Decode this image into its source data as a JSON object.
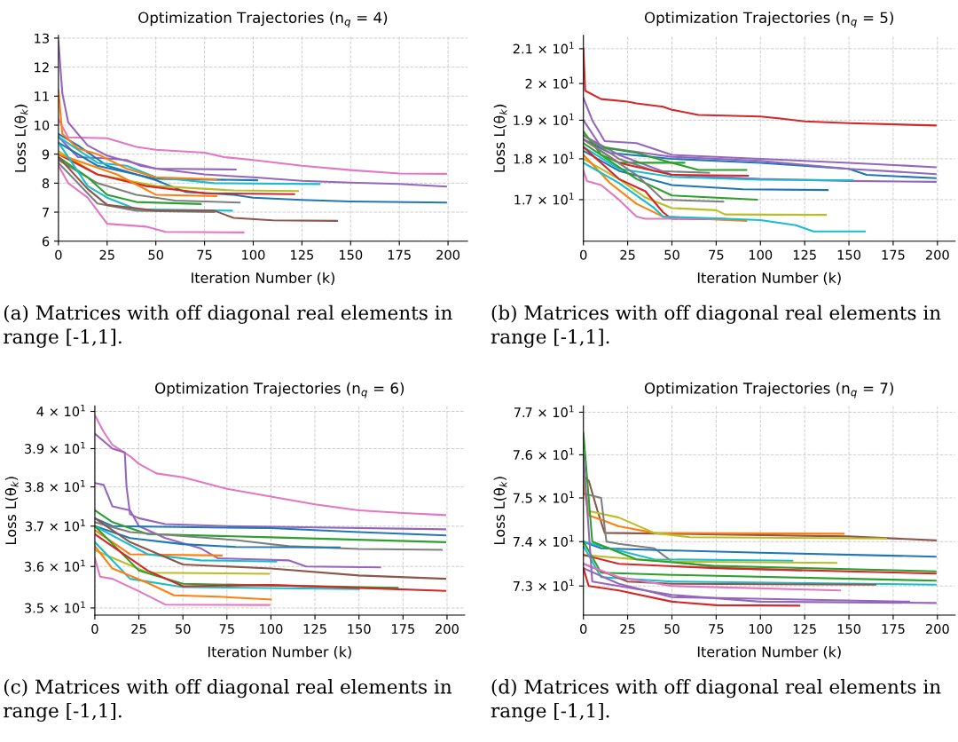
{
  "chart_data": [
    {
      "type": "line",
      "title": "Optimization Trajectories (n$_{q}$ = 4)",
      "xlabel": "Iteration Number (k)",
      "ylabel": "Loss L(θ$_{k}$)",
      "xlim": [
        0,
        210
      ],
      "ylim": [
        6,
        13.1
      ],
      "xticks": [
        0,
        25,
        50,
        75,
        100,
        125,
        150,
        175,
        200
      ],
      "yticks": [
        6,
        7,
        8,
        9,
        10,
        11,
        12,
        13
      ],
      "grid": true,
      "annotations": [
        "(a) Matrices with off diagonal real elements in range [-1,1]."
      ],
      "series": [
        {
          "color": "#e377c2",
          "x": [
            0,
            5,
            25,
            30,
            40,
            50,
            75,
            85,
            100,
            125,
            150,
            175,
            199
          ],
          "values": [
            10.2,
            9.58,
            9.55,
            9.45,
            9.25,
            9.15,
            9.05,
            8.9,
            8.8,
            8.6,
            8.45,
            8.33,
            8.32
          ]
        },
        {
          "color": "#9467bd",
          "x": [
            0,
            2,
            5,
            10,
            15,
            25,
            30,
            50,
            75,
            100,
            125,
            150,
            175,
            199
          ],
          "values": [
            12.9,
            11.1,
            10.1,
            9.7,
            9.3,
            8.95,
            8.85,
            8.5,
            8.3,
            8.2,
            8.08,
            8.02,
            7.97,
            7.88
          ]
        },
        {
          "color": "#9467bd",
          "x": [
            0,
            10,
            25,
            35,
            42,
            50,
            91
          ],
          "values": [
            9.6,
            8.9,
            8.85,
            8.8,
            8.6,
            8.5,
            8.47
          ]
        },
        {
          "color": "#1f77b4",
          "x": [
            0,
            10,
            25,
            50,
            65,
            90,
            100,
            125,
            150,
            199
          ],
          "values": [
            9.7,
            9.3,
            8.6,
            8.1,
            7.7,
            7.6,
            7.5,
            7.42,
            7.37,
            7.33
          ]
        },
        {
          "color": "#1f77b4",
          "x": [
            0,
            20,
            50,
            102
          ],
          "values": [
            9.4,
            8.6,
            8.15,
            8.1
          ]
        },
        {
          "color": "#17becf",
          "x": [
            0,
            20,
            35,
            50,
            80,
            134
          ],
          "values": [
            9.6,
            8.7,
            8.6,
            8.2,
            8.0,
            7.97
          ]
        },
        {
          "color": "#ff7f0e",
          "x": [
            0,
            2,
            10,
            20,
            35,
            50,
            81
          ],
          "values": [
            11.2,
            9.7,
            9.2,
            9.0,
            8.5,
            8.2,
            8.13
          ]
        },
        {
          "color": "#bcbd22",
          "x": [
            0,
            20,
            50,
            90,
            123
          ],
          "values": [
            9.1,
            8.3,
            7.9,
            7.75,
            7.73
          ]
        },
        {
          "color": "#d62728",
          "x": [
            0,
            20,
            45,
            75,
            121
          ],
          "values": [
            9.0,
            8.3,
            7.9,
            7.65,
            7.62
          ]
        },
        {
          "color": "#ff7f0e",
          "x": [
            0,
            30,
            50,
            81
          ],
          "values": [
            9.0,
            8.3,
            7.6,
            7.55
          ]
        },
        {
          "color": "#7f7f7f",
          "x": [
            0,
            20,
            40,
            60,
            93
          ],
          "values": [
            8.8,
            8.0,
            7.6,
            7.4,
            7.33
          ]
        },
        {
          "color": "#2ca02c",
          "x": [
            0,
            15,
            25,
            40,
            73
          ],
          "values": [
            8.9,
            8.2,
            7.6,
            7.35,
            7.28
          ]
        },
        {
          "color": "#17becf",
          "x": [
            0,
            15,
            25,
            40,
            89
          ],
          "values": [
            9.4,
            7.9,
            7.5,
            7.1,
            7.05
          ]
        },
        {
          "color": "#7f7f7f",
          "x": [
            0,
            20,
            40,
            80
          ],
          "values": [
            8.7,
            7.3,
            7.05,
            7.0
          ]
        },
        {
          "color": "#8c564b",
          "x": [
            0,
            15,
            25,
            50,
            80,
            90,
            110,
            143
          ],
          "values": [
            8.9,
            7.8,
            7.25,
            7.05,
            7.05,
            6.8,
            6.72,
            6.7
          ]
        },
        {
          "color": "#e377c2",
          "x": [
            0,
            5,
            15,
            25,
            45,
            55,
            95
          ],
          "values": [
            8.6,
            8.0,
            7.5,
            6.6,
            6.5,
            6.32,
            6.3
          ]
        }
      ]
    },
    {
      "type": "line",
      "title": "Optimization Trajectories (n$_{q}$ = 5)",
      "xlabel": "Iteration Number (k)",
      "ylabel": "Loss L(θ$_{k}$)",
      "log": "y",
      "xlim": [
        0,
        210
      ],
      "ylim": [
        16.04,
        21.4
      ],
      "xticks": [
        0,
        25,
        50,
        75,
        100,
        125,
        150,
        175,
        200
      ],
      "yticks": [
        {
          "value": 17,
          "label": "1.7 × 10$^{1}$"
        },
        {
          "value": 18,
          "label": "1.8 × 10$^{1}$"
        },
        {
          "value": 19,
          "label": "1.9 × 10$^{1}$"
        },
        {
          "value": 20,
          "label": "2 × 10$^{1}$"
        },
        {
          "value": 21,
          "label": "2.1 × 10$^{1}$"
        }
      ],
      "grid": true,
      "annotations": [
        "(b) Matrices with off diagonal real elements in range [-1,1]."
      ],
      "series": [
        {
          "color": "#d62728",
          "x": [
            0,
            1,
            10,
            25,
            30,
            45,
            50,
            65,
            100,
            110,
            125,
            150,
            199
          ],
          "values": [
            21.0,
            19.8,
            19.57,
            19.5,
            19.45,
            19.36,
            19.28,
            19.14,
            19.1,
            19.05,
            18.97,
            18.92,
            18.86
          ]
        },
        {
          "color": "#9467bd",
          "x": [
            0,
            5,
            12,
            30,
            50,
            100,
            150,
            199
          ],
          "values": [
            19.6,
            19.0,
            18.45,
            18.4,
            18.1,
            18.0,
            17.9,
            17.79
          ]
        },
        {
          "color": "#1f77b4",
          "x": [
            0,
            15,
            50,
            100,
            150,
            160,
            199
          ],
          "values": [
            18.5,
            18.15,
            18.0,
            17.9,
            17.75,
            17.6,
            17.52
          ]
        },
        {
          "color": "#9467bd",
          "x": [
            0,
            10,
            50,
            100,
            150,
            199
          ],
          "values": [
            19.0,
            18.3,
            18.05,
            17.95,
            17.75,
            17.62
          ]
        },
        {
          "color": "#9467bd",
          "x": [
            0,
            20,
            50,
            100,
            150,
            199
          ],
          "values": [
            18.6,
            18.1,
            17.6,
            17.5,
            17.45,
            17.43
          ]
        },
        {
          "color": "#2ca02c",
          "x": [
            0,
            10,
            20,
            57
          ],
          "values": [
            18.7,
            18.1,
            17.9,
            17.9
          ]
        },
        {
          "color": "#2ca02c",
          "x": [
            0,
            10,
            30,
            50,
            65,
            92
          ],
          "values": [
            18.6,
            18.3,
            18.15,
            17.9,
            17.72,
            17.72
          ]
        },
        {
          "color": "#7f7f7f",
          "x": [
            0,
            20,
            40,
            71
          ],
          "values": [
            18.6,
            18.0,
            17.7,
            17.65
          ]
        },
        {
          "color": "#d62728",
          "x": [
            0,
            20,
            50,
            93
          ],
          "values": [
            18.5,
            17.9,
            17.6,
            17.58
          ]
        },
        {
          "color": "#17becf",
          "x": [
            0,
            20,
            50,
            100,
            152
          ],
          "values": [
            18.3,
            17.75,
            17.55,
            17.48,
            17.47
          ]
        },
        {
          "color": "#1f77b4",
          "x": [
            0,
            20,
            50,
            90,
            138
          ],
          "values": [
            18.2,
            17.7,
            17.35,
            17.25,
            17.23
          ]
        },
        {
          "color": "#2ca02c",
          "x": [
            0,
            30,
            50,
            98
          ],
          "values": [
            18.4,
            17.5,
            17.1,
            17.0
          ]
        },
        {
          "color": "#7f7f7f",
          "x": [
            0,
            30,
            45,
            79
          ],
          "values": [
            18.5,
            17.6,
            17.0,
            16.95
          ]
        },
        {
          "color": "#bcbd22",
          "x": [
            0,
            20,
            35,
            50,
            75,
            80,
            137
          ],
          "values": [
            18.0,
            17.5,
            17.05,
            16.8,
            16.75,
            16.65,
            16.64
          ]
        },
        {
          "color": "#d62728",
          "x": [
            0,
            20,
            35,
            45,
            50,
            86
          ],
          "values": [
            18.3,
            17.5,
            17.2,
            16.7,
            16.55,
            16.53
          ]
        },
        {
          "color": "#ff7f0e",
          "x": [
            0,
            15,
            30,
            45,
            92
          ],
          "values": [
            18.1,
            17.4,
            16.9,
            16.6,
            16.5
          ]
        },
        {
          "color": "#e377c2",
          "x": [
            0,
            2,
            10,
            20,
            30,
            35,
            80
          ],
          "values": [
            17.7,
            17.45,
            17.35,
            17.0,
            16.6,
            16.55,
            16.55
          ]
        },
        {
          "color": "#17becf",
          "x": [
            0,
            20,
            40,
            45,
            75,
            100,
            120,
            130,
            159
          ],
          "values": [
            17.9,
            17.4,
            16.8,
            16.6,
            16.56,
            16.52,
            16.4,
            16.26,
            16.26
          ]
        }
      ]
    },
    {
      "type": "line",
      "title": "Optimization Trajectories (n$_{q}$ = 6)",
      "xlabel": "Iteration Number (k)",
      "ylabel": "Loss L(θ$_{k}$)",
      "log": "y",
      "xlim": [
        0,
        210
      ],
      "ylim": [
        34.83,
        40.15
      ],
      "xticks": [
        0,
        25,
        50,
        75,
        100,
        125,
        150,
        175,
        200
      ],
      "yticks": [
        {
          "value": 35,
          "label": "3.5 × 10$^{1}$"
        },
        {
          "value": 36,
          "label": "3.6 × 10$^{1}$"
        },
        {
          "value": 37,
          "label": "3.7 × 10$^{1}$"
        },
        {
          "value": 38,
          "label": "3.8 × 10$^{1}$"
        },
        {
          "value": 39,
          "label": "3.9 × 10$^{1}$"
        },
        {
          "value": 40,
          "label": "4 × 10$^{1}$"
        }
      ],
      "grid": true,
      "annotations": [
        "(c) Matrices with off diagonal real elements in range [-1,1]."
      ],
      "series": [
        {
          "color": "#e377c2",
          "x": [
            0,
            5,
            10,
            20,
            25,
            35,
            50,
            75,
            100,
            125,
            150,
            175,
            199
          ],
          "values": [
            39.9,
            39.45,
            39.1,
            38.8,
            38.6,
            38.35,
            38.25,
            37.95,
            37.75,
            37.55,
            37.4,
            37.33,
            37.28
          ]
        },
        {
          "color": "#9467bd",
          "x": [
            0,
            10,
            17,
            18,
            20,
            25,
            40,
            75,
            199
          ],
          "values": [
            39.4,
            39.0,
            38.9,
            38.0,
            37.3,
            37.2,
            37.05,
            37.0,
            36.92
          ]
        },
        {
          "color": "#9467bd",
          "x": [
            0,
            5,
            10,
            20,
            25,
            40,
            60,
            70,
            110,
            120,
            162
          ],
          "values": [
            38.1,
            38.05,
            37.5,
            37.4,
            37.0,
            36.7,
            36.45,
            36.2,
            36.15,
            36.0,
            35.98
          ]
        },
        {
          "color": "#1f77b4",
          "x": [
            0,
            10,
            100,
            150,
            199
          ],
          "values": [
            37.2,
            37.0,
            36.95,
            36.85,
            36.77
          ]
        },
        {
          "color": "#2ca02c",
          "x": [
            0,
            10,
            30,
            100,
            199
          ],
          "values": [
            37.4,
            37.1,
            36.8,
            36.72,
            36.6
          ]
        },
        {
          "color": "#7f7f7f",
          "x": [
            0,
            20,
            80,
            110,
            150,
            197
          ],
          "values": [
            37.1,
            36.85,
            36.65,
            36.5,
            36.43,
            36.41
          ]
        },
        {
          "color": "#1f77b4",
          "x": [
            0,
            20,
            50,
            80,
            139
          ],
          "values": [
            37.0,
            36.7,
            36.55,
            36.48,
            36.47
          ]
        },
        {
          "color": "#ff7f0e",
          "x": [
            0,
            20,
            72
          ],
          "values": [
            36.9,
            36.3,
            36.27
          ]
        },
        {
          "color": "#17becf",
          "x": [
            0,
            30,
            60,
            103
          ],
          "values": [
            37.0,
            36.3,
            36.15,
            36.12
          ]
        },
        {
          "color": "#bcbd22",
          "x": [
            0,
            30,
            99
          ],
          "values": [
            36.4,
            35.85,
            35.82
          ]
        },
        {
          "color": "#8c564b",
          "x": [
            0,
            20,
            50,
            100,
            150,
            199
          ],
          "values": [
            37.2,
            36.6,
            36.05,
            35.95,
            35.78,
            35.7
          ]
        },
        {
          "color": "#2ca02c",
          "x": [
            0,
            25,
            50,
            172
          ],
          "values": [
            37.0,
            35.9,
            35.58,
            35.48
          ]
        },
        {
          "color": "#17becf",
          "x": [
            0,
            20,
            50,
            150
          ],
          "values": [
            36.6,
            35.7,
            35.5,
            35.45
          ]
        },
        {
          "color": "#d62728",
          "x": [
            0,
            30,
            50,
            100,
            150,
            199
          ],
          "values": [
            36.8,
            35.9,
            35.52,
            35.55,
            35.48,
            35.41
          ]
        },
        {
          "color": "#ff7f0e",
          "x": [
            0,
            10,
            30,
            45,
            70,
            100
          ],
          "values": [
            36.5,
            35.95,
            35.6,
            35.3,
            35.27,
            35.2
          ]
        },
        {
          "color": "#e377c2",
          "x": [
            0,
            3,
            10,
            25,
            40,
            99
          ],
          "values": [
            36.2,
            35.75,
            35.7,
            35.4,
            35.08,
            35.07
          ]
        }
      ]
    },
    {
      "type": "line",
      "title": "Optimization Trajectories (n$_{q}$ = 7)",
      "xlabel": "Iteration Number (k)",
      "ylabel": "Loss L(θ$_{k}$)",
      "log": "y",
      "xlim": [
        0,
        210
      ],
      "ylim": [
        72.35,
        77.15
      ],
      "xticks": [
        0,
        25,
        50,
        75,
        100,
        125,
        150,
        175,
        200
      ],
      "yticks": [
        {
          "value": 73,
          "label": "7.3 × 10$^{1}$"
        },
        {
          "value": 74,
          "label": "7.4 × 10$^{1}$"
        },
        {
          "value": 75,
          "label": "7.5 × 10$^{1}$"
        },
        {
          "value": 76,
          "label": "7.6 × 10$^{1}$"
        },
        {
          "value": 77,
          "label": "7.7 × 10$^{1}$"
        }
      ],
      "grid": true,
      "annotations": [
        "(d) Matrices with off diagonal real elements in range [-1,1]."
      ],
      "series": [
        {
          "color": "#8c564b",
          "x": [
            0,
            3,
            8,
            12,
            50,
            150,
            199
          ],
          "values": [
            75.5,
            75.4,
            74.7,
            74.2,
            74.18,
            74.12,
            74.03
          ]
        },
        {
          "color": "#ff7f0e",
          "x": [
            0,
            3,
            10,
            20,
            40,
            147
          ],
          "values": [
            75.3,
            74.6,
            74.5,
            74.35,
            74.2,
            74.18
          ]
        },
        {
          "color": "#bcbd22",
          "x": [
            0,
            3,
            20,
            40,
            60,
            171
          ],
          "values": [
            75.5,
            74.7,
            74.55,
            74.2,
            74.1,
            74.07
          ]
        },
        {
          "color": "#7f7f7f",
          "x": [
            0,
            10,
            13,
            20,
            40,
            50,
            80,
            123
          ],
          "values": [
            75.1,
            75.0,
            74.0,
            73.95,
            73.85,
            73.55,
            73.4,
            73.35
          ]
        },
        {
          "color": "#1f77b4",
          "x": [
            0,
            10,
            50,
            100,
            199
          ],
          "values": [
            74.0,
            73.85,
            73.8,
            73.75,
            73.66
          ]
        },
        {
          "color": "#17becf",
          "x": [
            0,
            10,
            40,
            118
          ],
          "values": [
            74.0,
            73.9,
            73.6,
            73.57
          ]
        },
        {
          "color": "#bcbd22",
          "x": [
            0,
            30,
            50,
            143
          ],
          "values": [
            73.7,
            73.6,
            73.55,
            73.52
          ]
        },
        {
          "color": "#2ca02c",
          "x": [
            0,
            5,
            30,
            75,
            199
          ],
          "values": [
            76.5,
            74.0,
            73.6,
            73.45,
            73.33
          ]
        },
        {
          "color": "#d62728",
          "x": [
            0,
            20,
            75,
            199
          ],
          "values": [
            73.7,
            73.5,
            73.4,
            73.28
          ]
        },
        {
          "color": "#2ca02c",
          "x": [
            0,
            10,
            50,
            199
          ],
          "values": [
            74.0,
            73.3,
            73.25,
            73.12
          ]
        },
        {
          "color": "#17becf",
          "x": [
            0,
            10,
            50,
            199
          ],
          "values": [
            73.9,
            73.2,
            73.1,
            73.03
          ]
        },
        {
          "color": "#8c564b",
          "x": [
            0,
            25,
            50,
            165
          ],
          "values": [
            73.5,
            73.1,
            73.05,
            73.03
          ]
        },
        {
          "color": "#e377c2",
          "x": [
            0,
            20,
            50,
            145
          ],
          "values": [
            73.5,
            73.2,
            73.0,
            72.9
          ]
        },
        {
          "color": "#9467bd",
          "x": [
            0,
            20,
            50,
            90,
            184
          ],
          "values": [
            73.4,
            73.05,
            72.75,
            72.72,
            72.65
          ]
        },
        {
          "color": "#9467bd",
          "x": [
            0,
            5,
            20,
            50,
            100,
            199
          ],
          "values": [
            76.0,
            73.1,
            73.0,
            72.8,
            72.65,
            72.62
          ]
        },
        {
          "color": "#d62728",
          "x": [
            0,
            3,
            20,
            50,
            75,
            122
          ],
          "values": [
            73.4,
            73.0,
            72.9,
            72.65,
            72.57,
            72.56
          ]
        }
      ]
    }
  ]
}
